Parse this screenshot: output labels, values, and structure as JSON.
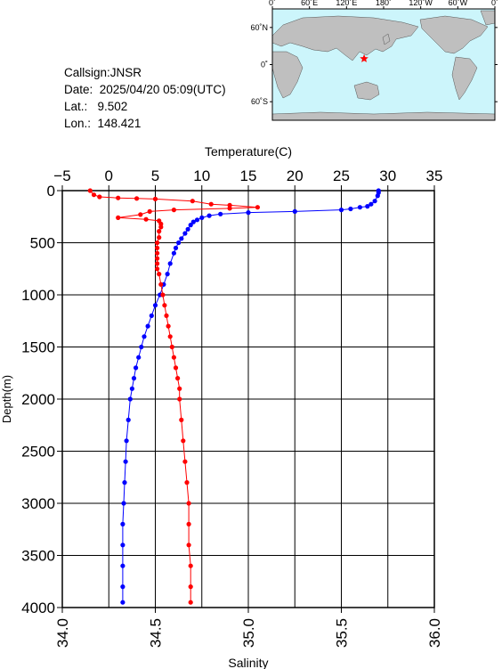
{
  "station": {
    "callsign_line": "Callsign:JNSR",
    "date_line": "Date:  2025/04/20 05:09(UTC)",
    "lat_line": "Lat.:   9.502",
    "lon_line": "Lon.:  148.421"
  },
  "map": {
    "top_labels": [
      "0˚",
      "60˚E",
      "120˚E",
      "180˚",
      "120˚W",
      "60˚W",
      "0˚"
    ],
    "left_labels": [
      "60˚N",
      "0˚",
      "60˚S"
    ],
    "ocean_color": "#ccf5fb",
    "land_color": "#bfbfbf",
    "marker_color": "#ff0000",
    "marker_lon": 148.421,
    "marker_lat": 9.502
  },
  "chart_data": {
    "type": "line",
    "depth_axis": {
      "label": "Depth(m)",
      "range": [
        0,
        4000
      ],
      "reversed": true,
      "ticks": [
        0,
        500,
        1000,
        1500,
        2000,
        2500,
        3000,
        3500,
        4000
      ]
    },
    "temperature_axis": {
      "label": "Temperature(C)",
      "range": [
        -5,
        35
      ],
      "ticks": [
        -5,
        0,
        5,
        10,
        15,
        20,
        25,
        30,
        35
      ]
    },
    "salinity_axis": {
      "label": "Salinity",
      "range": [
        34.0,
        36.0
      ],
      "ticks": [
        "34.0",
        "34.5",
        "35.0",
        "35.5",
        "36.0"
      ]
    },
    "grid": true,
    "series": [
      {
        "axis": "temperature",
        "color": "#0000ff",
        "points": [
          [
            29.0,
            0
          ],
          [
            29.0,
            20
          ],
          [
            28.9,
            50
          ],
          [
            28.6,
            100
          ],
          [
            28.2,
            130
          ],
          [
            27.8,
            150
          ],
          [
            27.0,
            160
          ],
          [
            26.0,
            175
          ],
          [
            25.0,
            185
          ],
          [
            20.0,
            200
          ],
          [
            15.0,
            210
          ],
          [
            12.0,
            225
          ],
          [
            10.8,
            240
          ],
          [
            10.0,
            260
          ],
          [
            9.5,
            280
          ],
          [
            9.1,
            300
          ],
          [
            8.8,
            330
          ],
          [
            8.5,
            370
          ],
          [
            8.2,
            410
          ],
          [
            7.8,
            460
          ],
          [
            7.5,
            500
          ],
          [
            7.2,
            550
          ],
          [
            7.0,
            600
          ],
          [
            6.6,
            700
          ],
          [
            6.3,
            800
          ],
          [
            5.9,
            900
          ],
          [
            5.5,
            1000
          ],
          [
            5.0,
            1100
          ],
          [
            4.6,
            1200
          ],
          [
            4.2,
            1300
          ],
          [
            3.8,
            1400
          ],
          [
            3.5,
            1500
          ],
          [
            3.2,
            1600
          ],
          [
            2.9,
            1700
          ],
          [
            2.7,
            1800
          ],
          [
            2.5,
            1900
          ],
          [
            2.3,
            2000
          ],
          [
            2.1,
            2200
          ],
          [
            1.9,
            2400
          ],
          [
            1.8,
            2600
          ],
          [
            1.7,
            2800
          ],
          [
            1.6,
            3000
          ],
          [
            1.5,
            3200
          ],
          [
            1.5,
            3400
          ],
          [
            1.5,
            3600
          ],
          [
            1.5,
            3800
          ],
          [
            1.5,
            3950
          ]
        ]
      },
      {
        "axis": "salinity",
        "color": "#ff0000",
        "points": [
          [
            34.15,
            0
          ],
          [
            34.17,
            40
          ],
          [
            34.2,
            60
          ],
          [
            34.3,
            70
          ],
          [
            34.4,
            75
          ],
          [
            34.5,
            80
          ],
          [
            34.7,
            100
          ],
          [
            34.8,
            130
          ],
          [
            34.9,
            140
          ],
          [
            35.05,
            160
          ],
          [
            34.9,
            170
          ],
          [
            34.6,
            185
          ],
          [
            34.47,
            200
          ],
          [
            34.42,
            230
          ],
          [
            34.3,
            260
          ],
          [
            34.45,
            275
          ],
          [
            34.52,
            290
          ],
          [
            34.53,
            320
          ],
          [
            34.53,
            350
          ],
          [
            34.52,
            390
          ],
          [
            34.52,
            450
          ],
          [
            34.51,
            500
          ],
          [
            34.51,
            550
          ],
          [
            34.51,
            600
          ],
          [
            34.51,
            650
          ],
          [
            34.51,
            700
          ],
          [
            34.51,
            750
          ],
          [
            34.52,
            800
          ],
          [
            34.53,
            900
          ],
          [
            34.54,
            1000
          ],
          [
            34.55,
            1100
          ],
          [
            34.56,
            1200
          ],
          [
            34.57,
            1300
          ],
          [
            34.58,
            1400
          ],
          [
            34.59,
            1500
          ],
          [
            34.6,
            1600
          ],
          [
            34.61,
            1700
          ],
          [
            34.62,
            1800
          ],
          [
            34.63,
            1900
          ],
          [
            34.63,
            2000
          ],
          [
            34.64,
            2200
          ],
          [
            34.65,
            2400
          ],
          [
            34.66,
            2600
          ],
          [
            34.67,
            2800
          ],
          [
            34.68,
            3000
          ],
          [
            34.68,
            3200
          ],
          [
            34.68,
            3400
          ],
          [
            34.69,
            3600
          ],
          [
            34.69,
            3800
          ],
          [
            34.69,
            3950
          ]
        ]
      }
    ]
  }
}
